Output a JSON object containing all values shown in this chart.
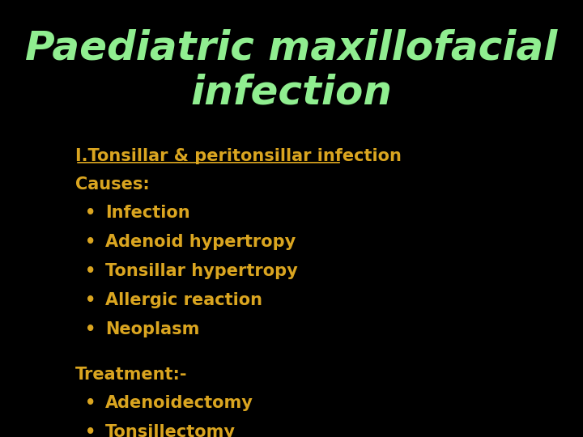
{
  "background_color": "#000000",
  "title_line1": "Paediatric maxillofacial",
  "title_line2": "infection",
  "title_color": "#90EE90",
  "title_fontsize": 36,
  "title_fontstyle": "italic",
  "title_fontweight": "bold",
  "subtitle_text": "I.Tonsillar & peritonsillar infection",
  "subtitle_color": "#DAA520",
  "subtitle_fontsize": 15,
  "causes_label": "Causes:",
  "causes_color": "#DAA520",
  "causes_fontsize": 15,
  "bullet_color": "#DAA520",
  "bullet_fontsize": 15,
  "causes_items": [
    "Infection",
    "Adenoid hypertropy",
    "Tonsillar hypertropy",
    "Allergic reaction",
    "Neoplasm"
  ],
  "treatment_label": "Treatment:-",
  "treatment_color": "#DAA520",
  "treatment_fontsize": 15,
  "treatment_items": [
    "Adenoidectomy",
    "Tonsillectomy"
  ],
  "figsize": [
    7.2,
    5.4
  ],
  "dpi": 100
}
